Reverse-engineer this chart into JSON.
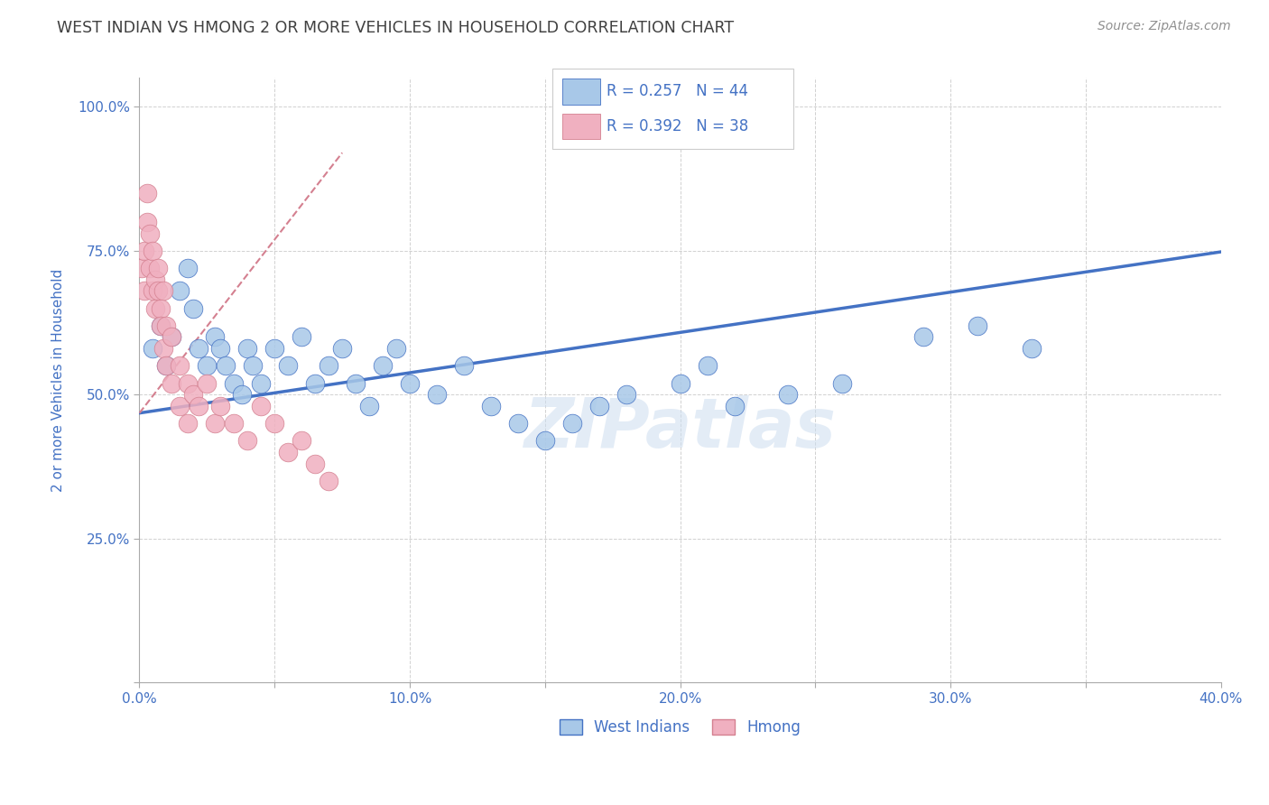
{
  "title": "WEST INDIAN VS HMONG 2 OR MORE VEHICLES IN HOUSEHOLD CORRELATION CHART",
  "source": "Source: ZipAtlas.com",
  "ylabel": "2 or more Vehicles in Household",
  "xlim": [
    0.0,
    0.4
  ],
  "ylim": [
    0.0,
    1.05
  ],
  "xticks": [
    0.0,
    0.05,
    0.1,
    0.15,
    0.2,
    0.25,
    0.3,
    0.35,
    0.4
  ],
  "xticklabels": [
    "0.0%",
    "",
    "10.0%",
    "",
    "20.0%",
    "",
    "30.0%",
    "",
    "40.0%"
  ],
  "yticks": [
    0.0,
    0.25,
    0.5,
    0.75,
    1.0
  ],
  "yticklabels": [
    "",
    "25.0%",
    "50.0%",
    "75.0%",
    "100.0%"
  ],
  "R_blue": 0.257,
  "N_blue": 44,
  "R_pink": 0.392,
  "N_pink": 38,
  "blue_color": "#a8c8e8",
  "pink_color": "#f0b0c0",
  "trend_blue": "#4472c4",
  "trend_pink": "#d48090",
  "text_color": "#4472c4",
  "title_color": "#404040",
  "source_color": "#909090",
  "grid_color": "#cccccc",
  "west_indian_x": [
    0.005,
    0.008,
    0.01,
    0.012,
    0.015,
    0.018,
    0.02,
    0.022,
    0.025,
    0.028,
    0.03,
    0.032,
    0.035,
    0.038,
    0.04,
    0.042,
    0.045,
    0.05,
    0.055,
    0.06,
    0.065,
    0.07,
    0.075,
    0.08,
    0.085,
    0.09,
    0.095,
    0.1,
    0.11,
    0.12,
    0.13,
    0.14,
    0.15,
    0.16,
    0.17,
    0.18,
    0.2,
    0.21,
    0.22,
    0.24,
    0.26,
    0.29,
    0.31,
    0.33
  ],
  "west_indian_y": [
    0.58,
    0.62,
    0.55,
    0.6,
    0.68,
    0.72,
    0.65,
    0.58,
    0.55,
    0.6,
    0.58,
    0.55,
    0.52,
    0.5,
    0.58,
    0.55,
    0.52,
    0.58,
    0.55,
    0.6,
    0.52,
    0.55,
    0.58,
    0.52,
    0.48,
    0.55,
    0.58,
    0.52,
    0.5,
    0.55,
    0.48,
    0.45,
    0.42,
    0.45,
    0.48,
    0.5,
    0.52,
    0.55,
    0.48,
    0.5,
    0.52,
    0.6,
    0.62,
    0.58
  ],
  "hmong_x": [
    0.001,
    0.002,
    0.002,
    0.003,
    0.003,
    0.004,
    0.004,
    0.005,
    0.005,
    0.006,
    0.006,
    0.007,
    0.007,
    0.008,
    0.008,
    0.009,
    0.009,
    0.01,
    0.01,
    0.012,
    0.012,
    0.015,
    0.015,
    0.018,
    0.018,
    0.02,
    0.022,
    0.025,
    0.028,
    0.03,
    0.035,
    0.04,
    0.045,
    0.05,
    0.055,
    0.06,
    0.065,
    0.07
  ],
  "hmong_y": [
    0.72,
    0.68,
    0.75,
    0.8,
    0.85,
    0.78,
    0.72,
    0.68,
    0.75,
    0.7,
    0.65,
    0.72,
    0.68,
    0.65,
    0.62,
    0.68,
    0.58,
    0.62,
    0.55,
    0.6,
    0.52,
    0.55,
    0.48,
    0.52,
    0.45,
    0.5,
    0.48,
    0.52,
    0.45,
    0.48,
    0.45,
    0.42,
    0.48,
    0.45,
    0.4,
    0.42,
    0.38,
    0.35
  ],
  "blue_trendline_x": [
    0.0,
    0.4
  ],
  "blue_trendline_y": [
    0.468,
    0.748
  ],
  "pink_trendline_x": [
    0.0,
    0.075
  ],
  "pink_trendline_y": [
    0.468,
    0.92
  ]
}
